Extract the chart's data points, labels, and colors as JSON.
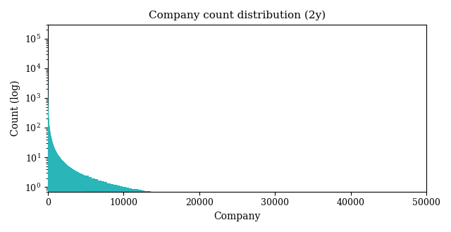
{
  "title": "Company count distribution (2y)",
  "xlabel": "Company",
  "ylabel": "Count (log)",
  "fill_color": "#2ab5b8",
  "xlim": [
    0,
    50000
  ],
  "ylim_bottom": 0.7,
  "ylim_top": 300000,
  "yscale": "log",
  "background_color": "#ffffff",
  "n_total": 50000,
  "num_bins_coarse": 50,
  "num_bins_fine": 2000,
  "title_fontsize": 11,
  "label_fontsize": 10,
  "tick_fontsize": 9,
  "font_family": "serif",
  "power_law_C": 100000,
  "power_law_alpha": 1.25
}
